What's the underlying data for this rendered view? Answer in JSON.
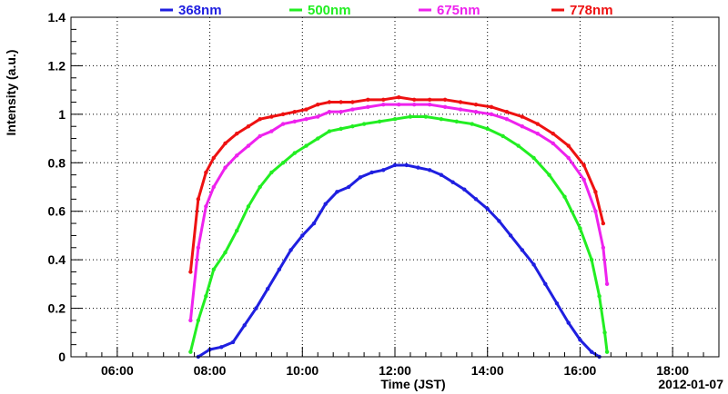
{
  "chart_data": {
    "type": "scatter",
    "title": "",
    "xlabel": "Time (JST)",
    "ylabel": "Intensity (a.u.)",
    "date_label": "2012-01-07",
    "xlim": [
      "05:00",
      "19:00"
    ],
    "ylim": [
      0,
      1.4
    ],
    "x_ticks": [
      "06:00",
      "08:00",
      "10:00",
      "12:00",
      "14:00",
      "16:00",
      "18:00"
    ],
    "y_ticks": [
      "0",
      "0.2",
      "0.4",
      "0.6",
      "0.8",
      "1",
      "1.2",
      "1.4"
    ],
    "grid": true,
    "legend_position": "top",
    "series": [
      {
        "name": "368nm",
        "color": "#1f1fe0",
        "points": [
          [
            "07:45",
            0.0
          ],
          [
            "08:00",
            0.03
          ],
          [
            "08:15",
            0.04
          ],
          [
            "08:30",
            0.06
          ],
          [
            "08:45",
            0.13
          ],
          [
            "09:00",
            0.2
          ],
          [
            "09:15",
            0.28
          ],
          [
            "09:30",
            0.36
          ],
          [
            "09:45",
            0.44
          ],
          [
            "10:00",
            0.5
          ],
          [
            "10:15",
            0.55
          ],
          [
            "10:30",
            0.63
          ],
          [
            "10:45",
            0.68
          ],
          [
            "11:00",
            0.7
          ],
          [
            "11:15",
            0.74
          ],
          [
            "11:30",
            0.76
          ],
          [
            "11:45",
            0.77
          ],
          [
            "12:00",
            0.79
          ],
          [
            "12:15",
            0.79
          ],
          [
            "12:30",
            0.78
          ],
          [
            "12:45",
            0.77
          ],
          [
            "13:00",
            0.75
          ],
          [
            "13:15",
            0.72
          ],
          [
            "13:30",
            0.69
          ],
          [
            "13:45",
            0.65
          ],
          [
            "14:00",
            0.61
          ],
          [
            "14:15",
            0.56
          ],
          [
            "14:30",
            0.5
          ],
          [
            "14:45",
            0.44
          ],
          [
            "15:00",
            0.38
          ],
          [
            "15:15",
            0.3
          ],
          [
            "15:30",
            0.22
          ],
          [
            "15:45",
            0.14
          ],
          [
            "16:00",
            0.07
          ],
          [
            "16:15",
            0.02
          ],
          [
            "16:25",
            0.0
          ]
        ]
      },
      {
        "name": "500nm",
        "color": "#22ee22",
        "points": [
          [
            "07:35",
            0.02
          ],
          [
            "07:45",
            0.15
          ],
          [
            "07:55",
            0.25
          ],
          [
            "08:05",
            0.36
          ],
          [
            "08:20",
            0.43
          ],
          [
            "08:35",
            0.52
          ],
          [
            "08:50",
            0.62
          ],
          [
            "09:05",
            0.7
          ],
          [
            "09:20",
            0.76
          ],
          [
            "09:35",
            0.8
          ],
          [
            "09:50",
            0.84
          ],
          [
            "10:05",
            0.87
          ],
          [
            "10:20",
            0.9
          ],
          [
            "10:35",
            0.93
          ],
          [
            "10:50",
            0.94
          ],
          [
            "11:05",
            0.95
          ],
          [
            "11:20",
            0.96
          ],
          [
            "11:40",
            0.97
          ],
          [
            "12:00",
            0.98
          ],
          [
            "12:20",
            0.99
          ],
          [
            "12:40",
            0.99
          ],
          [
            "13:00",
            0.98
          ],
          [
            "13:20",
            0.97
          ],
          [
            "13:40",
            0.96
          ],
          [
            "14:00",
            0.94
          ],
          [
            "14:20",
            0.91
          ],
          [
            "14:40",
            0.87
          ],
          [
            "15:00",
            0.82
          ],
          [
            "15:20",
            0.75
          ],
          [
            "15:40",
            0.66
          ],
          [
            "16:00",
            0.53
          ],
          [
            "16:15",
            0.4
          ],
          [
            "16:25",
            0.25
          ],
          [
            "16:32",
            0.1
          ],
          [
            "16:35",
            0.02
          ]
        ]
      },
      {
        "name": "675nm",
        "color": "#ee22ee",
        "points": [
          [
            "07:35",
            0.15
          ],
          [
            "07:45",
            0.45
          ],
          [
            "07:55",
            0.62
          ],
          [
            "08:05",
            0.7
          ],
          [
            "08:20",
            0.78
          ],
          [
            "08:35",
            0.83
          ],
          [
            "08:50",
            0.87
          ],
          [
            "09:05",
            0.91
          ],
          [
            "09:20",
            0.93
          ],
          [
            "09:35",
            0.96
          ],
          [
            "09:50",
            0.97
          ],
          [
            "10:05",
            0.98
          ],
          [
            "10:20",
            0.99
          ],
          [
            "10:35",
            1.01
          ],
          [
            "10:50",
            1.01
          ],
          [
            "11:05",
            1.02
          ],
          [
            "11:25",
            1.03
          ],
          [
            "11:45",
            1.04
          ],
          [
            "12:05",
            1.04
          ],
          [
            "12:25",
            1.04
          ],
          [
            "12:45",
            1.04
          ],
          [
            "13:05",
            1.03
          ],
          [
            "13:25",
            1.02
          ],
          [
            "13:45",
            1.01
          ],
          [
            "14:05",
            1.0
          ],
          [
            "14:25",
            0.98
          ],
          [
            "14:45",
            0.95
          ],
          [
            "15:05",
            0.92
          ],
          [
            "15:25",
            0.88
          ],
          [
            "15:45",
            0.82
          ],
          [
            "16:05",
            0.73
          ],
          [
            "16:20",
            0.6
          ],
          [
            "16:30",
            0.45
          ],
          [
            "16:35",
            0.3
          ]
        ]
      },
      {
        "name": "778nm",
        "color": "#ee1111",
        "points": [
          [
            "07:35",
            0.35
          ],
          [
            "07:45",
            0.65
          ],
          [
            "07:55",
            0.76
          ],
          [
            "08:05",
            0.82
          ],
          [
            "08:20",
            0.88
          ],
          [
            "08:35",
            0.92
          ],
          [
            "08:50",
            0.95
          ],
          [
            "09:05",
            0.98
          ],
          [
            "09:20",
            0.99
          ],
          [
            "09:35",
            1.0
          ],
          [
            "09:50",
            1.01
          ],
          [
            "10:05",
            1.02
          ],
          [
            "10:20",
            1.04
          ],
          [
            "10:35",
            1.05
          ],
          [
            "10:50",
            1.05
          ],
          [
            "11:05",
            1.05
          ],
          [
            "11:25",
            1.06
          ],
          [
            "11:45",
            1.06
          ],
          [
            "12:05",
            1.07
          ],
          [
            "12:25",
            1.06
          ],
          [
            "12:45",
            1.06
          ],
          [
            "13:05",
            1.06
          ],
          [
            "13:25",
            1.05
          ],
          [
            "13:45",
            1.04
          ],
          [
            "14:05",
            1.03
          ],
          [
            "14:25",
            1.01
          ],
          [
            "14:45",
            0.99
          ],
          [
            "15:05",
            0.96
          ],
          [
            "15:25",
            0.92
          ],
          [
            "15:45",
            0.87
          ],
          [
            "16:05",
            0.79
          ],
          [
            "16:20",
            0.68
          ],
          [
            "16:30",
            0.55
          ]
        ]
      }
    ]
  }
}
